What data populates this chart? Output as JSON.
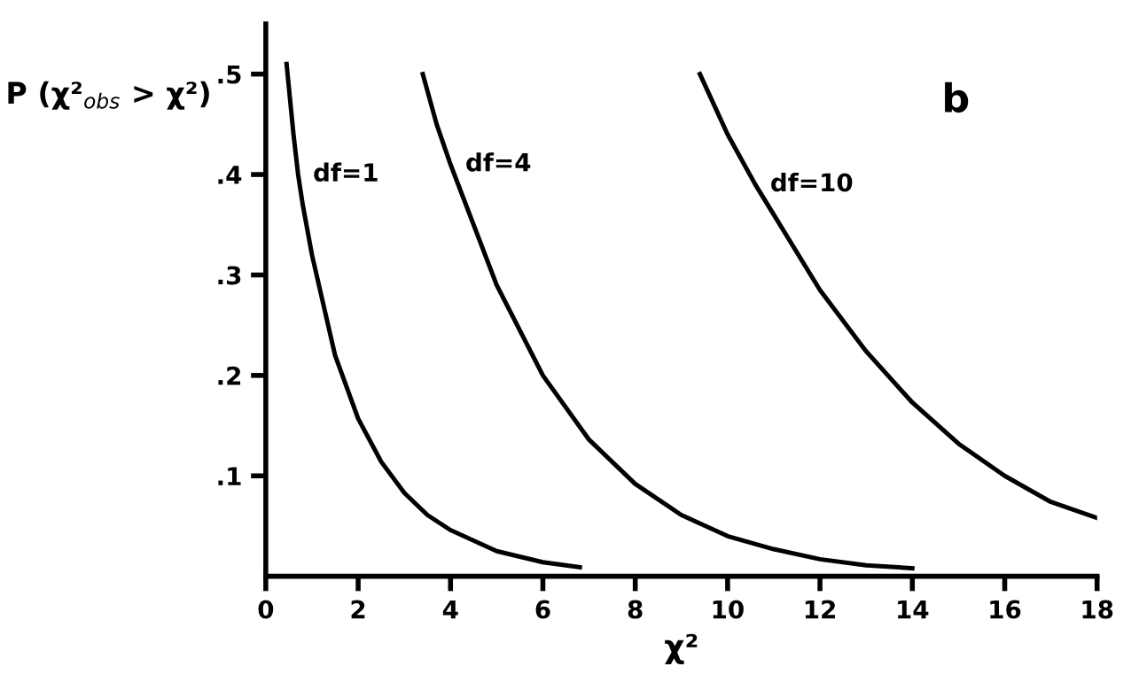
{
  "chart_data": {
    "type": "line",
    "xlabel": "χ²",
    "ylabel": "P (χ²$_{obs}$ > χ²)",
    "annotations": [
      "b"
    ],
    "series": [
      {
        "name": "df=1",
        "color": "#000000",
        "x": [
          0.45,
          0.6,
          0.7,
          0.8,
          1,
          1.5,
          2,
          2.5,
          3,
          3.5,
          4,
          5,
          6,
          6.8
        ],
        "values": [
          0.51,
          0.44,
          0.4,
          0.37,
          0.32,
          0.22,
          0.157,
          0.114,
          0.083,
          0.061,
          0.046,
          0.025,
          0.014,
          0.009
        ]
      },
      {
        "name": "df=4",
        "color": "#000000",
        "x": [
          3.4,
          3.7,
          4,
          5,
          6,
          7,
          8,
          9,
          10,
          11,
          12,
          13,
          14
        ],
        "values": [
          0.5,
          0.45,
          0.41,
          0.29,
          0.2,
          0.136,
          0.092,
          0.061,
          0.04,
          0.027,
          0.017,
          0.011,
          0.008
        ]
      },
      {
        "name": "df=10",
        "color": "#000000",
        "x": [
          9.4,
          10,
          10.6,
          11,
          12,
          13,
          14,
          15,
          16,
          17,
          18
        ],
        "values": [
          0.5,
          0.44,
          0.39,
          0.36,
          0.285,
          0.224,
          0.173,
          0.132,
          0.1,
          0.074,
          0.058
        ]
      }
    ],
    "xlim": [
      0,
      18
    ],
    "ylim": [
      0,
      0.55
    ],
    "xticks": [
      0,
      2,
      4,
      6,
      8,
      10,
      12,
      14,
      16,
      18
    ],
    "yticks": [
      {
        "value": 0.1,
        "label": ".1"
      },
      {
        "value": 0.2,
        "label": ".2"
      },
      {
        "value": 0.3,
        "label": ".3"
      },
      {
        "value": 0.4,
        "label": ".4"
      },
      {
        "value": 0.5,
        "label": ".5"
      }
    ],
    "grid": false,
    "legend": false,
    "marker": "none",
    "line_style": "solid"
  }
}
